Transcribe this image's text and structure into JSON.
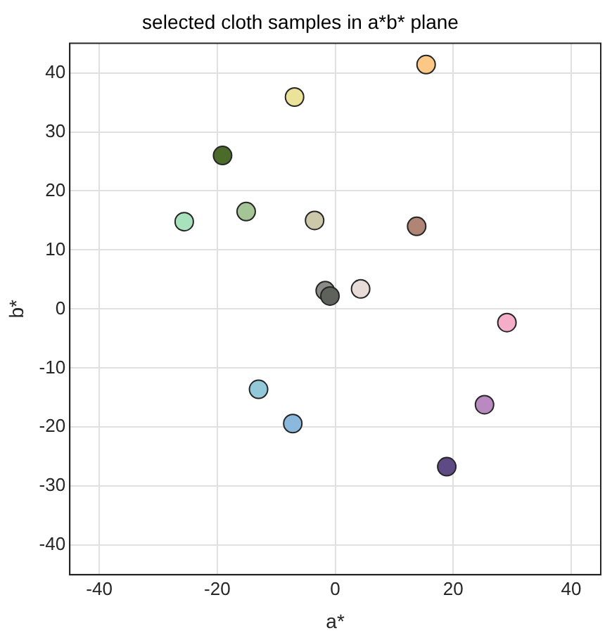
{
  "chart_data": {
    "type": "scatter",
    "title": "selected cloth samples in a*b* plane",
    "xlabel": "a*",
    "ylabel": "b*",
    "x": [
      15.4,
      -6.9,
      -19.1,
      -15.1,
      -25.6,
      -3.5,
      13.8,
      -1.7,
      -0.9,
      4.3,
      29.1,
      -13.0,
      -7.2,
      25.3,
      18.9
    ],
    "values": [
      41.4,
      35.9,
      26.0,
      16.5,
      14.8,
      15.0,
      14.0,
      3.1,
      2.2,
      3.4,
      -2.3,
      -13.6,
      -19.4,
      -16.2,
      -26.7
    ],
    "colors": [
      "#fdc886",
      "#ebe39a",
      "#4a6b2a",
      "#a4c596",
      "#a8e2bd",
      "#ccc9ab",
      "#b08576",
      "#8b8b85",
      "#5f625b",
      "#e8dcd8",
      "#f5aec8",
      "#93c8d8",
      "#8bb9de",
      "#b98ac0",
      "#5e4b85"
    ],
    "xlim": [
      -45,
      45
    ],
    "ylim": [
      -45,
      45
    ],
    "xticks": [
      -40,
      -20,
      0,
      20,
      40
    ],
    "yticks": [
      -40,
      -30,
      -20,
      -10,
      0,
      10,
      20,
      30,
      40
    ],
    "grid": true,
    "marker": "circle",
    "legend": false
  }
}
